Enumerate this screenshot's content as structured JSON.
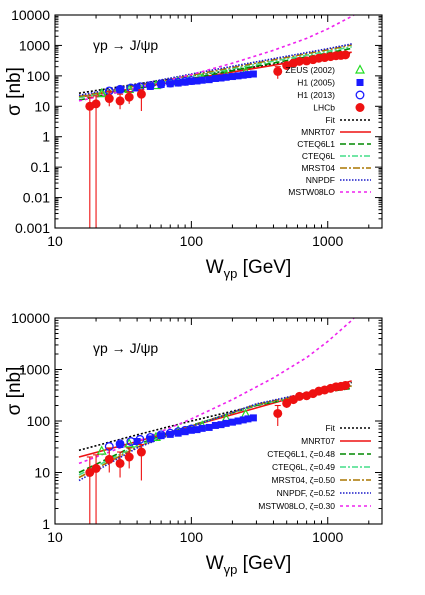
{
  "chart_data": [
    {
      "type": "scatter",
      "title": "",
      "annotation": "γp → J/ψp",
      "xlabel_main": "W",
      "xlabel_sub": "γp",
      "xlabel_unit": " [GeV]",
      "ylabel": "σ [nb]",
      "xscale": "log",
      "yscale": "log",
      "xlim": [
        10,
        2500
      ],
      "ylim": [
        0.001,
        10000
      ],
      "xticks": [
        10,
        100,
        1000
      ],
      "xtick_labels": [
        "10",
        "100",
        "1000"
      ],
      "yticks": [
        0.001,
        0.01,
        0.1,
        1,
        10,
        100,
        1000,
        10000
      ],
      "ytick_labels": [
        "0.001",
        "0.01",
        "0.1",
        "1",
        "10",
        "100",
        "1000",
        "10000"
      ],
      "legend_position": "right",
      "point_series": [
        {
          "name": "ZEUS (2002)",
          "marker": "triangle",
          "color": "#22dd22",
          "x": [
            22,
            35,
            55,
            80,
            120,
            180,
            250
          ],
          "y": [
            26,
            36,
            48,
            64,
            80,
            110,
            135
          ],
          "err": []
        },
        {
          "name": "H1 (2005)",
          "marker": "square",
          "color": "#1a1aff",
          "x": [
            30,
            40,
            50,
            60,
            70,
            80,
            90,
            100,
            110,
            120,
            135,
            150,
            165,
            180,
            200,
            220,
            240,
            260,
            285
          ],
          "y": [
            35,
            40,
            45,
            52,
            55,
            58,
            62,
            66,
            68,
            72,
            75,
            82,
            85,
            90,
            95,
            100,
            105,
            110,
            115
          ],
          "err": []
        },
        {
          "name": "H1 (2013)",
          "marker": "open-circle",
          "color": "#1a1aff",
          "x": [
            25,
            30,
            36,
            42,
            50,
            60,
            70,
            80,
            90,
            100
          ],
          "y": [
            32,
            36,
            40,
            44,
            48,
            54,
            58,
            62,
            66,
            70
          ],
          "err": []
        },
        {
          "name": "LHCb",
          "marker": "filled-circle",
          "color": "#ee1111",
          "x": [
            18,
            20,
            25,
            30,
            35,
            43,
            430,
            500,
            560,
            620,
            700,
            780,
            860,
            950,
            1050,
            1150,
            1250,
            1350
          ],
          "y": [
            10,
            12,
            18,
            15,
            20,
            25,
            140,
            220,
            260,
            300,
            310,
            340,
            380,
            400,
            430,
            460,
            470,
            490
          ],
          "err": [
            [
              0.0005,
              20
            ],
            [
              0.0005,
              22
            ],
            [
              10,
              30
            ],
            [
              8,
              25
            ],
            [
              12,
              30
            ],
            [
              7,
              35
            ],
            [
              80,
              200
            ],
            [
              180,
              260
            ],
            [
              220,
              300
            ],
            [
              260,
              340
            ],
            [
              270,
              350
            ],
            [
              300,
              380
            ],
            [
              340,
              420
            ],
            [
              360,
              440
            ],
            [
              390,
              470
            ],
            [
              420,
              500
            ],
            [
              430,
              510
            ],
            [
              450,
              530
            ]
          ]
        }
      ],
      "curve_series": [
        {
          "name": "Fit",
          "color": "#000000",
          "dash": "2,2",
          "x": [
            15,
            40,
            100,
            300,
            1000,
            1500
          ],
          "y": [
            27,
            54,
            100,
            200,
            430,
            560
          ]
        },
        {
          "name": "MNRT07",
          "color": "#ee1111",
          "dash": "",
          "x": [
            15,
            40,
            100,
            300,
            1000,
            1500
          ],
          "y": [
            20,
            40,
            80,
            180,
            440,
            600
          ]
        },
        {
          "name": "CTEQ6L1",
          "color": "#008800",
          "dash": "6,3",
          "x": [
            15,
            40,
            100,
            300,
            1000,
            1500
          ],
          "y": [
            16,
            38,
            82,
            210,
            560,
            800
          ]
        },
        {
          "name": "CTEQ6L",
          "color": "#44dd88",
          "dash": "6,2,2,2",
          "x": [
            15,
            40,
            100,
            300,
            1000,
            1500
          ],
          "y": [
            19,
            44,
            95,
            240,
            640,
            900
          ]
        },
        {
          "name": "MRST04",
          "color": "#aa7700",
          "dash": "7,2,2,2",
          "x": [
            15,
            40,
            100,
            300,
            1000,
            1500
          ],
          "y": [
            21,
            48,
            105,
            265,
            720,
            1030
          ]
        },
        {
          "name": "NNPDF",
          "color": "#1a1ac8",
          "dash": "1.5,1.5",
          "x": [
            15,
            40,
            100,
            300,
            1000,
            1500
          ],
          "y": [
            23,
            52,
            115,
            290,
            780,
            1120
          ]
        },
        {
          "name": "MSTW08LO",
          "color": "#ee22ee",
          "dash": "3,3",
          "x": [
            15,
            40,
            100,
            200,
            400,
            700,
            1000,
            1500,
            2500
          ],
          "y": [
            15,
            40,
            110,
            260,
            690,
            1700,
            3500,
            9000,
            40000
          ]
        }
      ]
    },
    {
      "type": "scatter",
      "title": "",
      "annotation": "γp → J/ψp",
      "xlabel_main": "W",
      "xlabel_sub": "γp",
      "xlabel_unit": " [GeV]",
      "ylabel": "σ [nb]",
      "xscale": "log",
      "yscale": "log",
      "xlim": [
        10,
        2500
      ],
      "ylim": [
        1,
        10000
      ],
      "xticks": [
        10,
        100,
        1000
      ],
      "xtick_labels": [
        "10",
        "100",
        "1000"
      ],
      "yticks": [
        1,
        10,
        100,
        1000,
        10000
      ],
      "ytick_labels": [
        "1",
        "10",
        "100",
        "1000",
        "10000"
      ],
      "legend_position": "bottom-right",
      "point_series": [
        {
          "name": "",
          "marker": "triangle",
          "color": "#22dd22",
          "x": [
            22,
            35,
            55,
            80,
            120,
            180,
            250
          ],
          "y": [
            26,
            36,
            48,
            64,
            80,
            110,
            135
          ],
          "err": []
        },
        {
          "name": "",
          "marker": "square",
          "color": "#1a1aff",
          "x": [
            30,
            40,
            50,
            60,
            70,
            80,
            90,
            100,
            110,
            120,
            135,
            150,
            165,
            180,
            200,
            220,
            240,
            260,
            285
          ],
          "y": [
            35,
            40,
            45,
            52,
            55,
            58,
            62,
            66,
            68,
            72,
            75,
            82,
            85,
            90,
            95,
            100,
            105,
            110,
            115
          ],
          "err": []
        },
        {
          "name": "",
          "marker": "open-circle",
          "color": "#1a1aff",
          "x": [
            25,
            30,
            36,
            42,
            50,
            60,
            70,
            80,
            90,
            100
          ],
          "y": [
            32,
            36,
            40,
            44,
            48,
            54,
            58,
            62,
            66,
            70
          ],
          "err": []
        },
        {
          "name": "",
          "marker": "filled-circle",
          "color": "#ee1111",
          "x": [
            18,
            20,
            25,
            30,
            35,
            43,
            430,
            500,
            560,
            620,
            700,
            780,
            860,
            950,
            1050,
            1150,
            1250,
            1350
          ],
          "y": [
            10,
            12,
            18,
            15,
            20,
            25,
            140,
            220,
            260,
            300,
            310,
            340,
            380,
            400,
            430,
            460,
            470,
            490
          ],
          "err": [
            [
              0.5,
              20
            ],
            [
              0.5,
              22
            ],
            [
              10,
              30
            ],
            [
              8,
              25
            ],
            [
              12,
              30
            ],
            [
              7,
              35
            ],
            [
              80,
              200
            ],
            [
              180,
              260
            ],
            [
              220,
              300
            ],
            [
              260,
              340
            ],
            [
              270,
              350
            ],
            [
              300,
              380
            ],
            [
              340,
              420
            ],
            [
              360,
              440
            ],
            [
              390,
              470
            ],
            [
              420,
              500
            ],
            [
              430,
              510
            ],
            [
              450,
              530
            ]
          ]
        }
      ],
      "curve_series": [
        {
          "name": "Fit",
          "color": "#000000",
          "dash": "2,2",
          "x": [
            15,
            40,
            100,
            300,
            1000,
            1500
          ],
          "y": [
            27,
            54,
            100,
            200,
            430,
            560
          ]
        },
        {
          "name": "MNRT07",
          "color": "#ee1111",
          "dash": "",
          "x": [
            15,
            40,
            100,
            300,
            1000,
            1500
          ],
          "y": [
            20,
            40,
            80,
            180,
            440,
            600
          ]
        },
        {
          "name": "CTEQ6L1, ζ=0.48",
          "color": "#008800",
          "dash": "6,3",
          "x": [
            15,
            40,
            100,
            300,
            1000,
            1500
          ],
          "y": [
            10,
            35,
            82,
            200,
            370,
            430
          ]
        },
        {
          "name": "CTEQ6L, ζ=0.49",
          "color": "#44dd88",
          "dash": "6,2,2,2",
          "x": [
            15,
            40,
            100,
            300,
            1000,
            1500
          ],
          "y": [
            9,
            33,
            80,
            205,
            390,
            460
          ]
        },
        {
          "name": "MRST04, ζ=0.50",
          "color": "#aa7700",
          "dash": "7,2,2,2",
          "x": [
            15,
            40,
            100,
            300,
            1000,
            1500
          ],
          "y": [
            8,
            31,
            80,
            210,
            410,
            480
          ]
        },
        {
          "name": "NNPDF, ζ=0.52",
          "color": "#1a1ac8",
          "dash": "1.5,1.5",
          "x": [
            15,
            40,
            100,
            300,
            1000,
            1500
          ],
          "y": [
            7,
            30,
            78,
            215,
            430,
            500
          ]
        },
        {
          "name": "MSTW08LO, ζ=0.30",
          "color": "#ee22ee",
          "dash": "3,3",
          "x": [
            15,
            40,
            100,
            200,
            400,
            700,
            1000,
            1500,
            2500
          ],
          "y": [
            15,
            40,
            110,
            260,
            690,
            1700,
            3500,
            9000,
            40000
          ]
        }
      ]
    }
  ]
}
